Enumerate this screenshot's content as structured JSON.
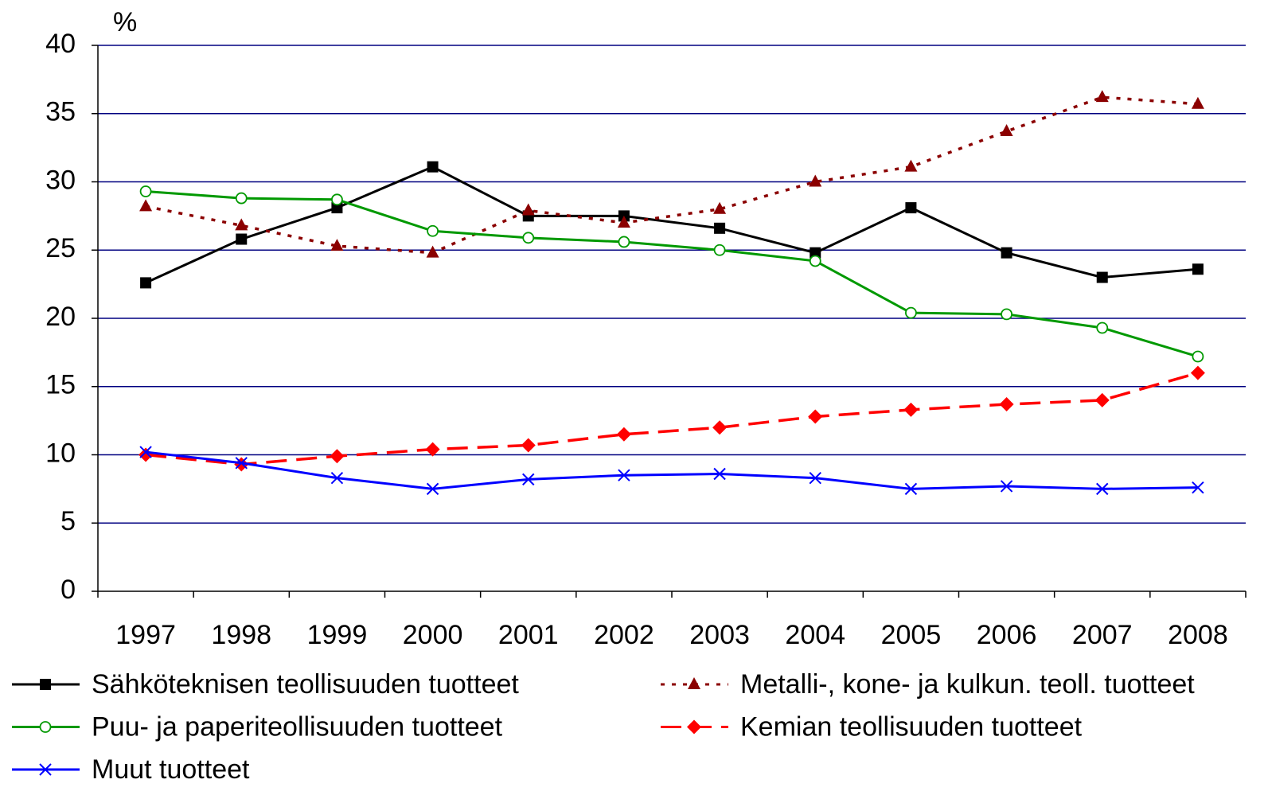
{
  "chart_data": {
    "type": "line",
    "y_label": "%",
    "categories": [
      "1997",
      "1998",
      "1999",
      "2000",
      "2001",
      "2002",
      "2003",
      "2004",
      "2005",
      "2006",
      "2007",
      "2008"
    ],
    "ylim": [
      0,
      40
    ],
    "yticks": [
      0,
      5,
      10,
      15,
      20,
      25,
      30,
      35,
      40
    ],
    "grid": true,
    "series": [
      {
        "name": "Sähköteknisen teollisuuden tuotteet",
        "color": "#000000",
        "marker": "square",
        "dash": "solid",
        "values": [
          22.6,
          25.8,
          28.1,
          31.1,
          27.5,
          27.5,
          26.6,
          24.8,
          28.1,
          24.8,
          23.0,
          23.6
        ]
      },
      {
        "name": "Metalli-, kone- ja kulkun. teoll. tuotteet",
        "color": "#8b0000",
        "marker": "triangle",
        "dash": "dotted",
        "values": [
          28.2,
          26.8,
          25.3,
          24.8,
          27.9,
          27.0,
          28.0,
          30.0,
          31.1,
          33.7,
          36.2,
          35.7
        ]
      },
      {
        "name": "Puu- ja paperiteollisuuden tuotteet",
        "color": "#009900",
        "marker": "circle",
        "dash": "solid",
        "values": [
          29.3,
          28.8,
          28.7,
          26.4,
          25.9,
          25.6,
          25.0,
          24.2,
          20.4,
          20.3,
          19.3,
          17.2
        ]
      },
      {
        "name": "Kemian teollisuuden tuotteet",
        "color": "#ff0000",
        "marker": "diamond",
        "dash": "dashed",
        "values": [
          10.0,
          9.3,
          9.9,
          10.4,
          10.7,
          11.5,
          12.0,
          12.8,
          13.3,
          13.7,
          14.0,
          16.0
        ]
      },
      {
        "name": "Muut tuotteet",
        "color": "#0000ff",
        "marker": "x",
        "dash": "solid",
        "values": [
          10.2,
          9.4,
          8.3,
          7.5,
          8.2,
          8.5,
          8.6,
          8.3,
          7.5,
          7.7,
          7.5,
          7.6
        ]
      }
    ]
  }
}
